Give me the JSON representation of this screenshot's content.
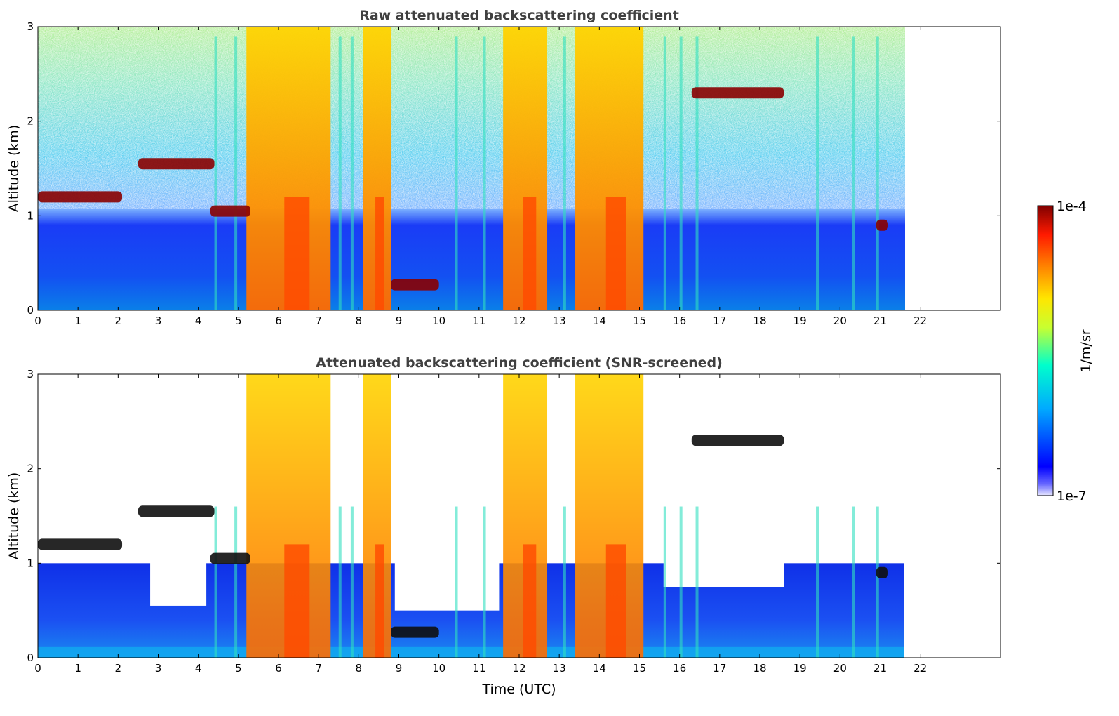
{
  "chart_data": [
    {
      "type": "heatmap",
      "title": "Raw attenuated backscattering coefficient",
      "xlabel": "",
      "ylabel": "Altitude (km)",
      "xlim": [
        0,
        24
      ],
      "ylim": [
        0,
        3
      ],
      "x_ticks": [
        "0",
        "1",
        "2",
        "3",
        "4",
        "5",
        "6",
        "7",
        "8",
        "9",
        "10",
        "11",
        "12",
        "13",
        "14",
        "15",
        "16",
        "17",
        "18",
        "19",
        "20",
        "21",
        "22"
      ],
      "y_ticks": [
        "0",
        "1",
        "2",
        "3"
      ],
      "data_end_time": 21.6,
      "layers": [
        {
          "feature": "boundary-layer",
          "t_start": 0,
          "t_end": 21.6,
          "alt_top": 1.0
        },
        {
          "feature": "cloud-layer",
          "t_start": 0,
          "t_end": 2.1,
          "alt": 1.2
        },
        {
          "feature": "cloud-layer",
          "t_start": 2.5,
          "t_end": 4.4,
          "alt": 1.55
        },
        {
          "feature": "cloud-layer",
          "t_start": 4.3,
          "t_end": 5.3,
          "alt": 1.05
        },
        {
          "feature": "precipitation",
          "t_start": 5.2,
          "t_end": 7.3
        },
        {
          "feature": "precipitation",
          "t_start": 8.1,
          "t_end": 8.8
        },
        {
          "feature": "cloud-layer",
          "t_start": 8.8,
          "t_end": 10.0,
          "alt": 0.27
        },
        {
          "feature": "precipitation",
          "t_start": 11.6,
          "t_end": 12.7
        },
        {
          "feature": "precipitation",
          "t_start": 13.4,
          "t_end": 15.1
        },
        {
          "feature": "cloud-layer",
          "t_start": 16.3,
          "t_end": 18.6,
          "alt": 2.3
        },
        {
          "feature": "cloud-layer",
          "t_start": 20.9,
          "t_end": 21.2,
          "alt": 0.9
        }
      ]
    },
    {
      "type": "heatmap",
      "title": "Attenuated backscattering coefficient (SNR-screened)",
      "xlabel": "Time (UTC)",
      "ylabel": "Altitude (km)",
      "xlim": [
        0,
        24
      ],
      "ylim": [
        0,
        3
      ],
      "x_ticks": [
        "0",
        "1",
        "2",
        "3",
        "4",
        "5",
        "6",
        "7",
        "8",
        "9",
        "10",
        "11",
        "12",
        "13",
        "14",
        "15",
        "16",
        "17",
        "18",
        "19",
        "20",
        "21",
        "22"
      ],
      "y_ticks": [
        "0",
        "1",
        "2",
        "3"
      ],
      "data_end_time": 21.6,
      "screened_out_color": "#ffffff"
    }
  ],
  "colorbar": {
    "label": "1/m/sr",
    "max_label": "1e-4",
    "min_label": "1e-7",
    "colormap": "jet",
    "colors": [
      "#e8e8ff",
      "#0000ff",
      "#00aaff",
      "#00ffcc",
      "#c8ff30",
      "#ffe600",
      "#ff7a00",
      "#ff1a00",
      "#800000"
    ]
  }
}
